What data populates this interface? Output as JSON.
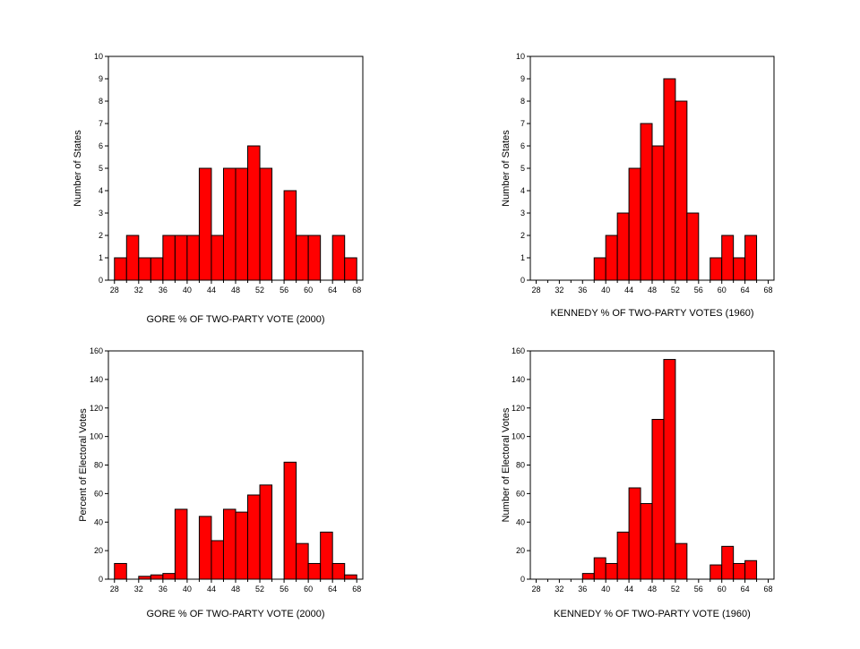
{
  "colors": {
    "bar": "#ff0000",
    "bar_outline": "#000000",
    "background": "#ffffff"
  },
  "chart_data": [
    {
      "type": "bar",
      "histogram": true,
      "xlabel": "GORE % OF TWO-PARTY VOTE (2000)",
      "ylabel": "Number of States",
      "xlim": [
        27,
        69
      ],
      "ylim": [
        0,
        10
      ],
      "x_ticks": [
        "28",
        "32",
        "36",
        "40",
        "44",
        "48",
        "52",
        "56",
        "60",
        "64",
        "68"
      ],
      "y_ticks": [
        "0",
        "1",
        "2",
        "3",
        "4",
        "5",
        "6",
        "7",
        "8",
        "9",
        "10"
      ],
      "bin_width": 2,
      "bin_starts": [
        28,
        30,
        32,
        34,
        36,
        38,
        40,
        42,
        44,
        46,
        48,
        50,
        52,
        54,
        56,
        58,
        60,
        62,
        64,
        66
      ],
      "values": [
        1,
        2,
        1,
        1,
        2,
        2,
        2,
        5,
        2,
        5,
        5,
        6,
        5,
        0,
        4,
        2,
        2,
        0,
        2,
        1
      ],
      "grid": false
    },
    {
      "type": "bar",
      "histogram": true,
      "xlabel": "KENNEDY % OF TWO-PARTY VOTES (1960)",
      "ylabel": "Number of States",
      "xlim": [
        27,
        69
      ],
      "ylim": [
        0,
        10
      ],
      "x_ticks": [
        "28",
        "32",
        "36",
        "40",
        "44",
        "48",
        "52",
        "56",
        "60",
        "64",
        "68"
      ],
      "y_ticks": [
        "0",
        "1",
        "2",
        "3",
        "4",
        "5",
        "6",
        "7",
        "8",
        "9",
        "10"
      ],
      "bin_width": 2,
      "bin_starts": [
        38,
        40,
        42,
        44,
        46,
        48,
        50,
        52,
        54,
        56,
        58,
        60,
        62,
        64
      ],
      "values": [
        1,
        2,
        3,
        5,
        7,
        6,
        9,
        8,
        3,
        0,
        1,
        2,
        1,
        2
      ],
      "grid": false
    },
    {
      "type": "bar",
      "histogram": true,
      "xlabel": "GORE % OF TWO-PARTY VOTE (2000)",
      "ylabel": "Percent of Electoral Votes",
      "xlim": [
        27,
        69
      ],
      "ylim": [
        0,
        160
      ],
      "x_ticks": [
        "28",
        "32",
        "36",
        "40",
        "44",
        "48",
        "52",
        "56",
        "60",
        "64",
        "68"
      ],
      "y_ticks": [
        "0",
        "20",
        "40",
        "60",
        "80",
        "100",
        "120",
        "140",
        "160"
      ],
      "bin_width": 2,
      "bin_starts": [
        28,
        30,
        32,
        34,
        36,
        38,
        40,
        42,
        44,
        46,
        48,
        50,
        52,
        54,
        56,
        58,
        60,
        62,
        64,
        66
      ],
      "values": [
        11,
        0,
        2,
        3,
        4,
        49,
        0,
        44,
        27,
        49,
        47,
        59,
        66,
        0,
        82,
        25,
        11,
        33,
        11,
        3
      ],
      "grid": false
    },
    {
      "type": "bar",
      "histogram": true,
      "xlabel": "KENNEDY % OF TWO-PARTY VOTE (1960)",
      "ylabel": "Number of Electoral Votes",
      "xlim": [
        27,
        69
      ],
      "ylim": [
        0,
        160
      ],
      "x_ticks": [
        "28",
        "32",
        "36",
        "40",
        "44",
        "48",
        "52",
        "56",
        "60",
        "64",
        "68"
      ],
      "y_ticks": [
        "0",
        "20",
        "40",
        "60",
        "80",
        "100",
        "120",
        "140",
        "160"
      ],
      "bin_width": 2,
      "bin_starts": [
        36,
        38,
        40,
        42,
        44,
        46,
        48,
        50,
        52,
        54,
        56,
        58,
        60,
        62,
        64
      ],
      "values": [
        4,
        15,
        11,
        33,
        64,
        53,
        112,
        154,
        25,
        0,
        0,
        10,
        23,
        11,
        13
      ],
      "grid": false
    }
  ]
}
